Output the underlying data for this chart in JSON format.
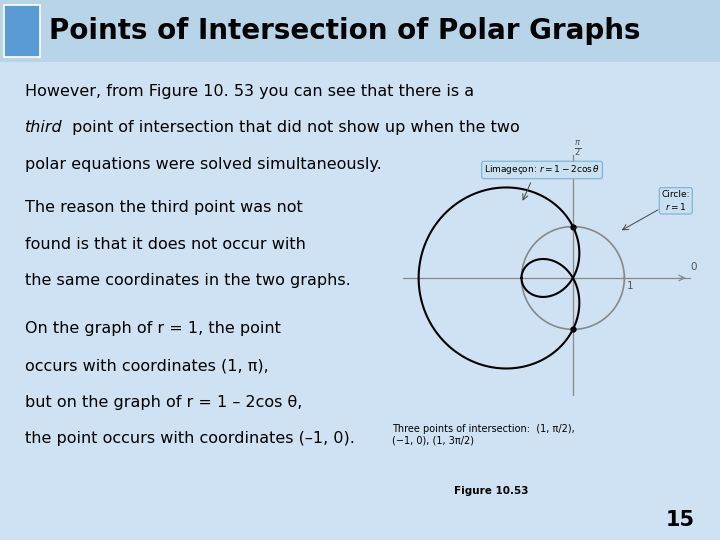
{
  "title": "Points of Intersection of Polar Graphs",
  "title_bg_color": "#b8d4e8",
  "title_accent_color": "#5b9bd5",
  "slide_bg_color": "#cfe2f3",
  "title_fontsize": 20,
  "body_fontsize": 11.5,
  "figure_caption": "Three points of intersection:  (1, π/2),\n(−1, 0), (1, 3π/2)",
  "figure_label": "Figure 10.53",
  "page_number": "15",
  "plot_bg": "#ffffff"
}
